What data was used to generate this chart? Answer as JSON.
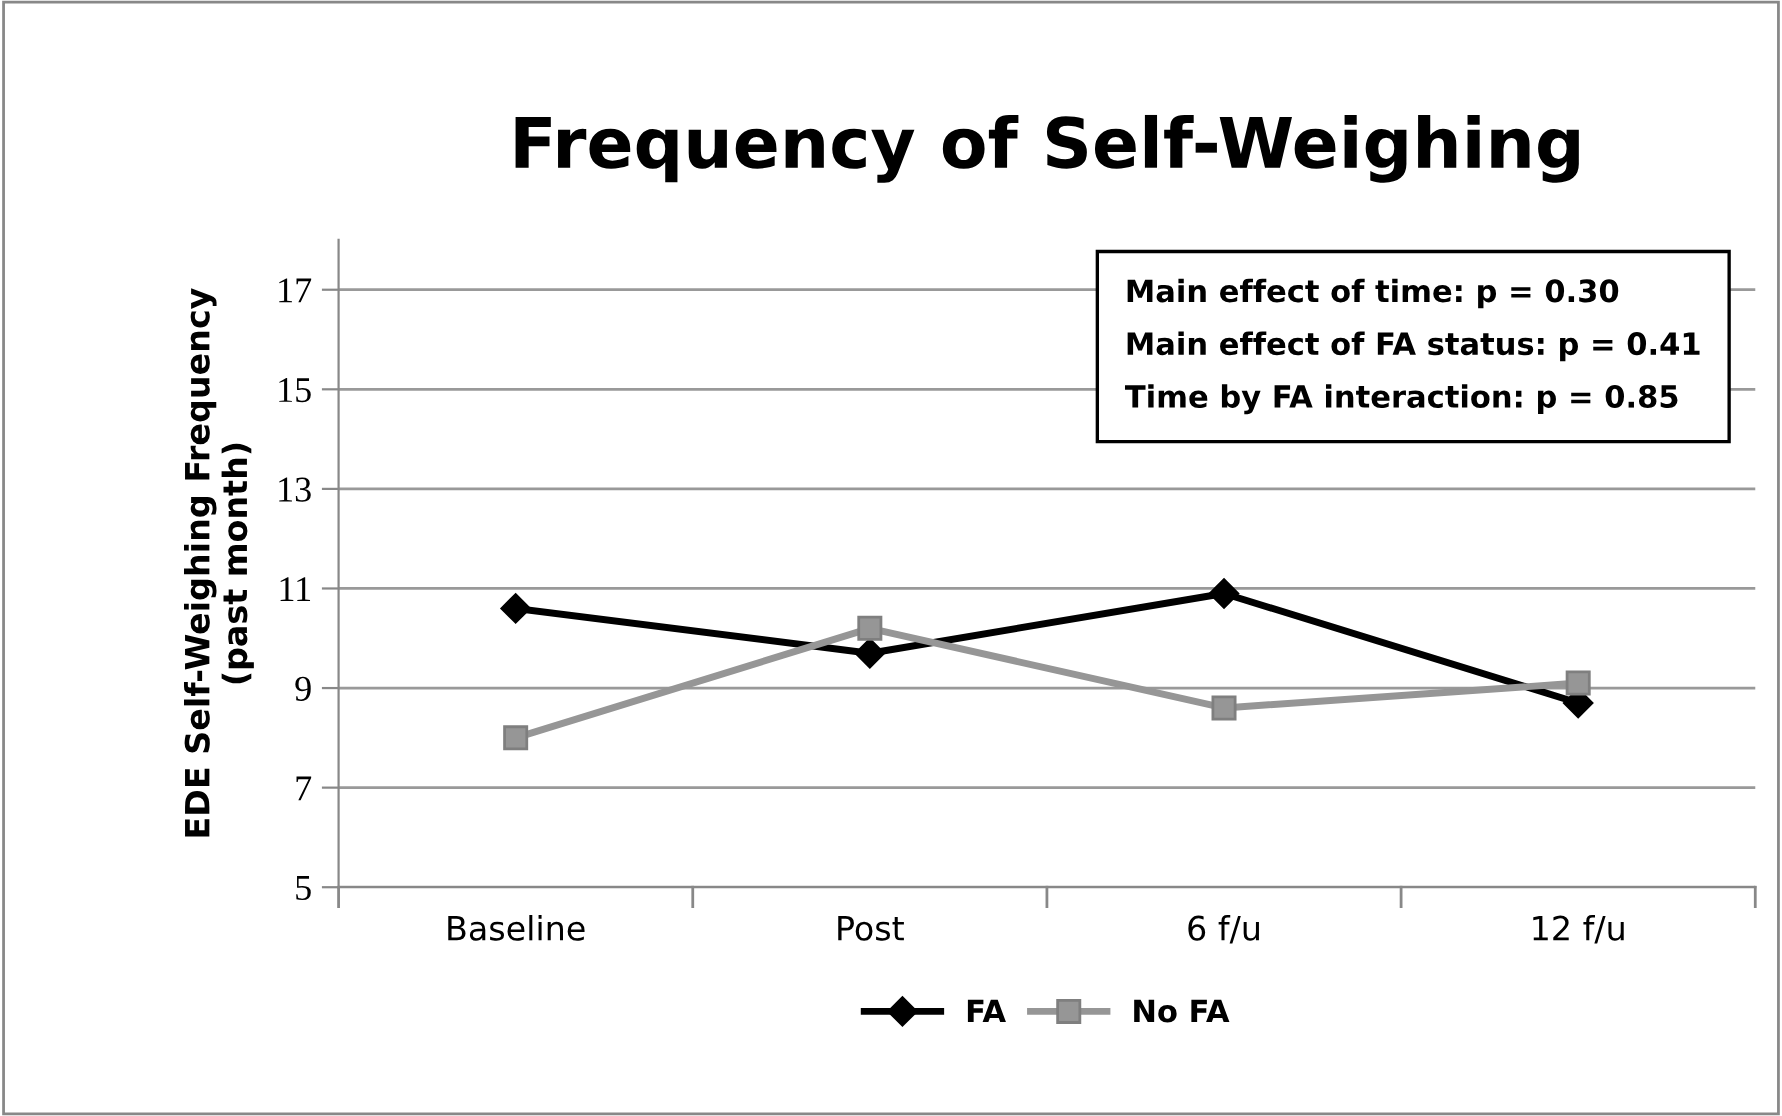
{
  "chart_data": {
    "type": "line",
    "title": "Frequency of Self-Weighing",
    "ylabel": "EDE Self-Weighing Frequency\n(past month)",
    "categories": [
      "Baseline",
      "Post",
      "6 f/u",
      "12 f/u"
    ],
    "series": [
      {
        "name": "FA",
        "color": "#000000",
        "marker": "diamond",
        "values": [
          10.6,
          9.7,
          10.9,
          8.7
        ]
      },
      {
        "name": "No FA",
        "color": "#969696",
        "marker": "square",
        "values": [
          8.0,
          10.2,
          8.6,
          9.1
        ]
      }
    ],
    "ylim": [
      5,
      18
    ],
    "yticks": [
      5,
      7,
      9,
      11,
      13,
      15,
      17
    ],
    "grid": "y",
    "legend": "bottom",
    "line_style": "solid",
    "annotations": [
      "Main effect of time: p = 0.30",
      "Main effect of FA status: p = 0.41",
      "Time by FA interaction: p = 0.85"
    ]
  }
}
